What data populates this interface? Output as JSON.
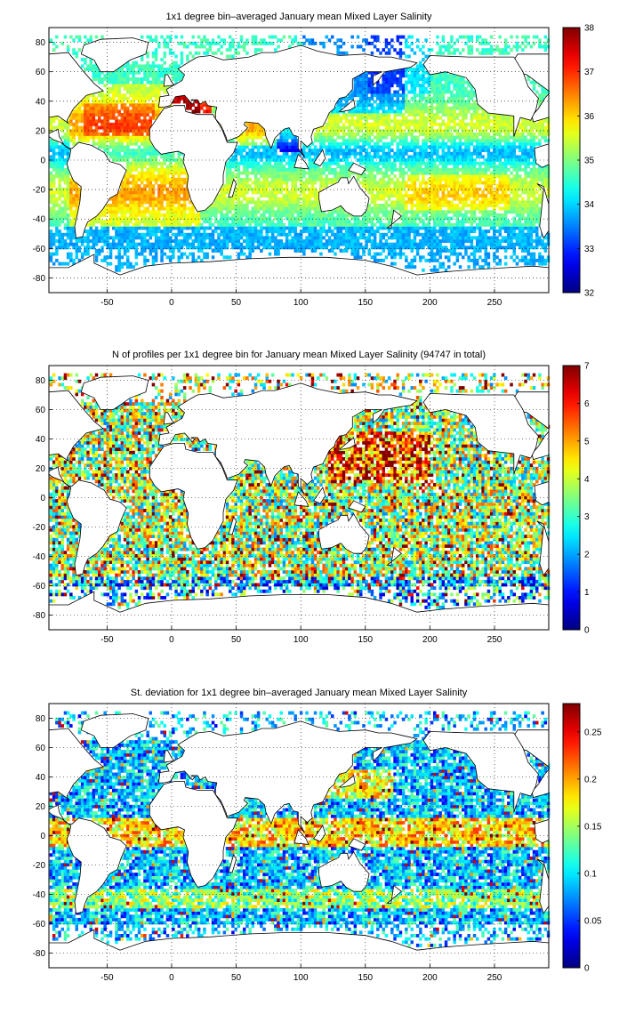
{
  "chart_data": [
    {
      "type": "heatmap",
      "title": "1x1 degree bin–averaged January mean Mixed Layer Salinity",
      "xlim": [
        -95,
        292
      ],
      "ylim": [
        -90,
        90
      ],
      "xticks": [
        -50,
        0,
        50,
        100,
        150,
        200,
        250
      ],
      "yticks": [
        -80,
        -60,
        -40,
        -20,
        0,
        20,
        40,
        60,
        80
      ],
      "grid": true,
      "colormap": "jet",
      "clim": [
        32,
        38
      ],
      "colorbar_ticks": [
        32,
        33,
        34,
        35,
        36,
        37,
        38
      ]
    },
    {
      "type": "heatmap",
      "title": "N of profiles per 1x1 degree bin for January mean Mixed Layer Salinity  (94747 in total)",
      "xlim": [
        -95,
        292
      ],
      "ylim": [
        -90,
        90
      ],
      "xticks": [
        -50,
        0,
        50,
        100,
        150,
        200,
        250
      ],
      "yticks": [
        -80,
        -60,
        -40,
        -20,
        0,
        20,
        40,
        60,
        80
      ],
      "grid": true,
      "colormap": "jet",
      "clim": [
        0,
        7
      ],
      "colorbar_ticks": [
        0,
        1,
        2,
        3,
        4,
        5,
        6,
        7
      ]
    },
    {
      "type": "heatmap",
      "title": "St. deviation for 1x1 degree bin–averaged January mean Mixed Layer Salinity",
      "xlim": [
        -95,
        292
      ],
      "ylim": [
        -90,
        90
      ],
      "xticks": [
        -50,
        0,
        50,
        100,
        150,
        200,
        250
      ],
      "yticks": [
        -80,
        -60,
        -40,
        -20,
        0,
        20,
        40,
        60,
        80
      ],
      "grid": true,
      "colormap": "jet",
      "clim": [
        0,
        0.28
      ],
      "colorbar_ticks": [
        0,
        0.05,
        0.1,
        0.15,
        0.2,
        0.25
      ]
    }
  ]
}
